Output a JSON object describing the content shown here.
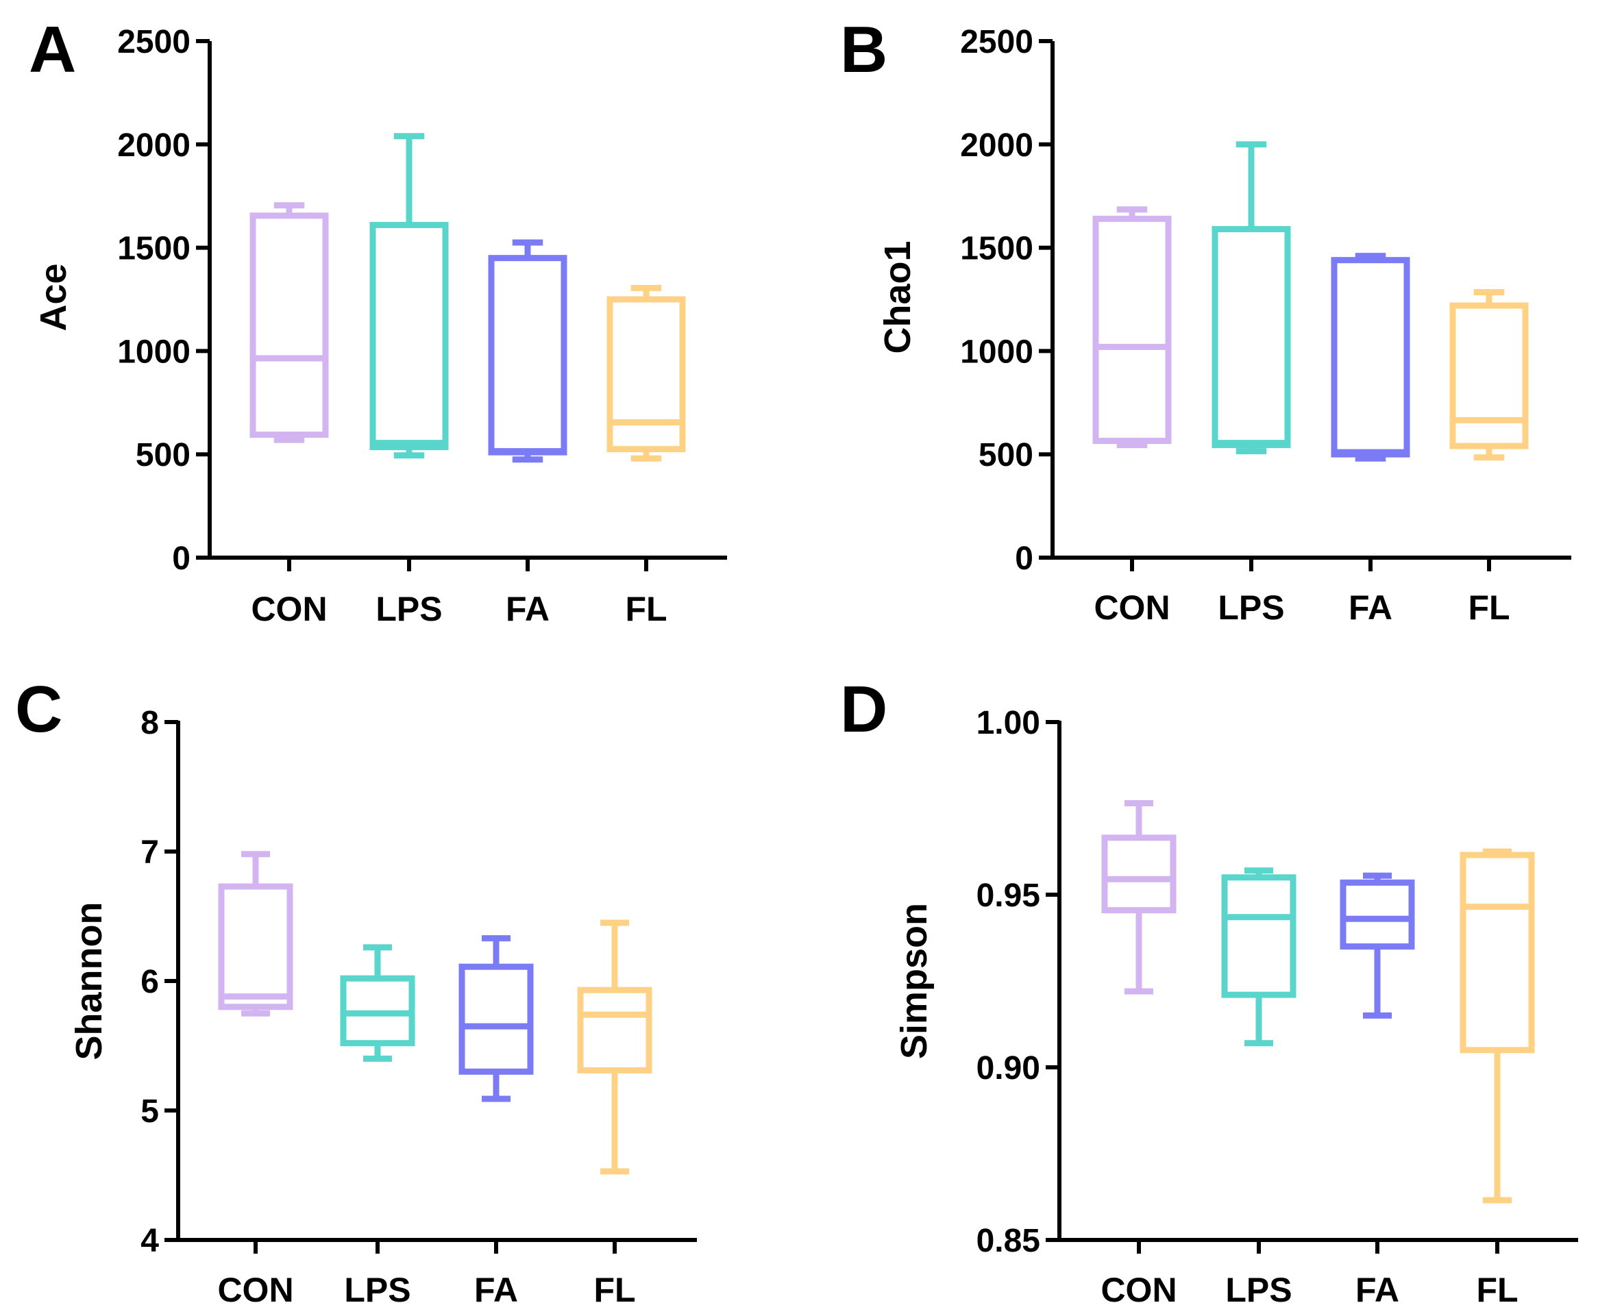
{
  "chart_data": [
    {
      "type": "box",
      "panel": "A",
      "ylabel": "Ace",
      "categories": [
        "CON",
        "LPS",
        "FA",
        "FL"
      ],
      "colors": [
        "#d2b4f0",
        "#5ad5cb",
        "#7b7bf5",
        "#ffd184"
      ],
      "ylim": [
        0,
        2500
      ],
      "yticks": [
        0,
        500,
        1000,
        1500,
        2000,
        2500
      ],
      "tick_labels": [
        "0",
        "500",
        "1000",
        "1500",
        "2000",
        "2500"
      ],
      "boxes": [
        {
          "min": 570,
          "q1": 595,
          "median": 965,
          "q3": 1655,
          "max": 1705
        },
        {
          "min": 495,
          "q1": 535,
          "median": 555,
          "q3": 1610,
          "max": 2040
        },
        {
          "min": 475,
          "q1": 510,
          "median": 515,
          "q3": 1450,
          "max": 1525
        },
        {
          "min": 480,
          "q1": 525,
          "median": 655,
          "q3": 1250,
          "max": 1305
        }
      ]
    },
    {
      "type": "box",
      "panel": "B",
      "ylabel": "Chao1",
      "categories": [
        "CON",
        "LPS",
        "FA",
        "FL"
      ],
      "colors": [
        "#d2b4f0",
        "#5ad5cb",
        "#7b7bf5",
        "#ffd184"
      ],
      "ylim": [
        0,
        2500
      ],
      "yticks": [
        0,
        500,
        1000,
        1500,
        2000,
        2500
      ],
      "tick_labels": [
        "0",
        "500",
        "1000",
        "1500",
        "2000",
        "2500"
      ],
      "boxes": [
        {
          "min": 545,
          "q1": 565,
          "median": 1020,
          "q3": 1640,
          "max": 1685
        },
        {
          "min": 515,
          "q1": 545,
          "median": 555,
          "q3": 1590,
          "max": 2000
        },
        {
          "min": 480,
          "q1": 500,
          "median": 510,
          "q3": 1440,
          "max": 1460
        },
        {
          "min": 485,
          "q1": 540,
          "median": 665,
          "q3": 1220,
          "max": 1285
        }
      ]
    },
    {
      "type": "box",
      "panel": "C",
      "ylabel": "Shannon",
      "categories": [
        "CON",
        "LPS",
        "FA",
        "FL"
      ],
      "colors": [
        "#d2b4f0",
        "#5ad5cb",
        "#7b7bf5",
        "#ffd184"
      ],
      "ylim": [
        4,
        8
      ],
      "yticks": [
        4,
        5,
        6,
        7,
        8
      ],
      "tick_labels": [
        "4",
        "5",
        "6",
        "7",
        "8"
      ],
      "boxes": [
        {
          "min": 5.75,
          "q1": 5.8,
          "median": 5.88,
          "q3": 6.73,
          "max": 6.98
        },
        {
          "min": 5.4,
          "q1": 5.52,
          "median": 5.75,
          "q3": 6.02,
          "max": 6.26
        },
        {
          "min": 5.09,
          "q1": 5.3,
          "median": 5.65,
          "q3": 6.11,
          "max": 6.33
        },
        {
          "min": 4.53,
          "q1": 5.31,
          "median": 5.74,
          "q3": 5.93,
          "max": 6.45
        }
      ]
    },
    {
      "type": "box",
      "panel": "D",
      "ylabel": "Simpson",
      "categories": [
        "CON",
        "LPS",
        "FA",
        "FL"
      ],
      "colors": [
        "#d2b4f0",
        "#5ad5cb",
        "#7b7bf5",
        "#ffd184"
      ],
      "ylim": [
        0.85,
        1.0
      ],
      "yticks": [
        0.85,
        0.9,
        0.95,
        1.0
      ],
      "tick_labels": [
        "0.85",
        "0.90",
        "0.95",
        "1.00"
      ],
      "boxes": [
        {
          "min": 0.922,
          "q1": 0.9455,
          "median": 0.9545,
          "q3": 0.9665,
          "max": 0.9765
        },
        {
          "min": 0.907,
          "q1": 0.921,
          "median": 0.9435,
          "q3": 0.955,
          "max": 0.957
        },
        {
          "min": 0.915,
          "q1": 0.935,
          "median": 0.943,
          "q3": 0.9535,
          "max": 0.9555
        },
        {
          "min": 0.8615,
          "q1": 0.905,
          "median": 0.9465,
          "q3": 0.9615,
          "max": 0.9625
        }
      ]
    }
  ]
}
